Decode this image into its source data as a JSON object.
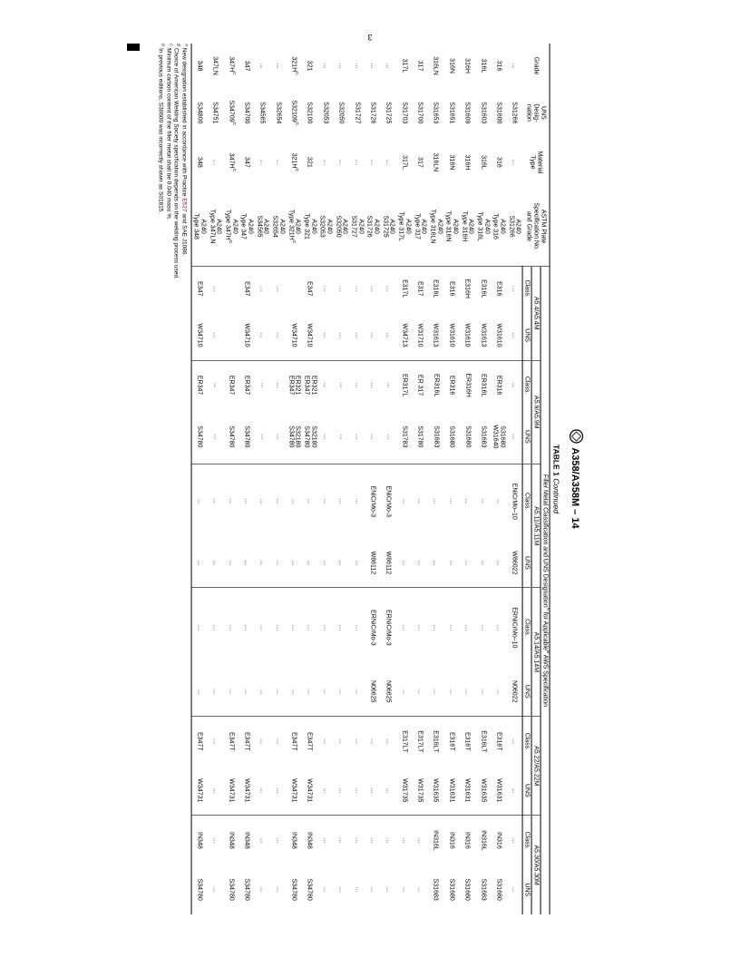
{
  "page_num_top": "3",
  "doc_designation": "A358/A358M – 14",
  "table_label": "TABLE 1",
  "table_caption": "Continued",
  "spanning_header": "Filler Metal Classification and UNS Designation<sup>A</sup> for Applicable<sup>B</sup> AWS Specification",
  "headers": {
    "grade": "Grade",
    "uns_desig": "UNS<br>Desig-<br>nation",
    "mat_type": "Material<br>Type",
    "astm_plate": "ASTM Plate<br>Specification No.<br>and Grade",
    "class": "Class.",
    "uns": "UNS",
    "specs": [
      "A5.4/A5.4M",
      "A5.9/A5.9M",
      "A5.11/A5.11M",
      "A5.14/A5.14M",
      "A5.22/A5.22M",
      "A5.30/A5.30M"
    ]
  },
  "rows": [
    {
      "grade": "…",
      "uns_d": "S31266",
      "mtype": "…",
      "plate": "A240<br>S31266",
      "c1": "…",
      "u1": "…",
      "c2": "…",
      "u2": "…",
      "c3": "ENiCrMo–10",
      "u3": "W86022",
      "c4": "ERNiCrMo–10",
      "u4": "N06022",
      "c5": "…",
      "u5": "…",
      "c6": "…",
      "u6": "…"
    },
    {
      "grade": "316",
      "uns_d": "S31600",
      "mtype": "316",
      "plate": "A240<br>Type 316",
      "c1": "E316",
      "u1": "W31610",
      "c2": "ER316",
      "u2": "S31680<br>W31640",
      "c3": "…",
      "u3": "…",
      "c4": "…",
      "u4": "…",
      "c5": "E316T",
      "u5": "W31631",
      "c6": "IN316",
      "u6": "S31680"
    },
    {
      "grade": "316L",
      "uns_d": "S31603",
      "mtype": "316L",
      "plate": "A240<br>Type 316L",
      "c1": "E316L",
      "u1": "W31613",
      "c2": "ER316L",
      "u2": "S31683",
      "c3": "…",
      "u3": "…",
      "c4": "…",
      "u4": "…",
      "c5": "E316LT",
      "u5": "W31635",
      "c6": "IN316L",
      "u6": "S31683"
    },
    {
      "grade": "316H",
      "uns_d": "S31609",
      "mtype": "316H",
      "plate": "A240<br>Type 316H",
      "c1": "E316H",
      "u1": "W31610",
      "c2": "ER316H",
      "u2": "S31680",
      "c3": "…",
      "u3": "…",
      "c4": "…",
      "u4": "…",
      "c5": "E316T",
      "u5": "W31631",
      "c6": "IN316",
      "u6": "S31680"
    },
    {
      "grade": "316N",
      "uns_d": "S31651",
      "mtype": "316N",
      "plate": "A240<br>Type 316N",
      "c1": "E316",
      "u1": "W31610",
      "c2": "ER316",
      "u2": "S31680",
      "c3": "…",
      "u3": "…",
      "c4": "…",
      "u4": "…",
      "c5": "E316T",
      "u5": "W31631",
      "c6": "IN316",
      "u6": "S31680"
    },
    {
      "grade": "316LN",
      "uns_d": "S31653",
      "mtype": "316LN",
      "plate": "A240<br>Type 316LN",
      "c1": "E316L",
      "u1": "W31613",
      "c2": "ER316L",
      "u2": "S31683",
      "c3": "…",
      "u3": "…",
      "c4": "…",
      "u4": "…",
      "c5": "E316LT",
      "u5": "W31635",
      "c6": "IN316L",
      "u6": "S31683"
    },
    {
      "grade": "317",
      "uns_d": "S31700",
      "mtype": "317",
      "plate": "A240<br>Type 317",
      "c1": "E317",
      "u1": "W31710",
      "c2": "ER 317",
      "u2": "S31780",
      "c3": "…",
      "u3": "…",
      "c4": "…",
      "u4": "…",
      "c5": "E317LT",
      "u5": "W31735",
      "c6": "…",
      "u6": "…"
    },
    {
      "grade": "317L",
      "uns_d": "S31703",
      "mtype": "317L",
      "plate": "A240<br>Type 317L",
      "c1": "E317L",
      "u1": "W34713",
      "c2": "ER317L",
      "u2": "S31783",
      "c3": "…",
      "u3": "…",
      "c4": "…",
      "u4": "…",
      "c5": "E317LT",
      "u5": "W31735",
      "c6": "…",
      "u6": "…"
    },
    {
      "grade": "…",
      "uns_d": "S31725",
      "mtype": "…",
      "plate": "A240<br>S31725",
      "c1": "…",
      "u1": "…",
      "c2": "…",
      "u2": "…",
      "c3": "ENiCrMo-3",
      "u3": "W86112",
      "c4": "ERNiCrMo-3",
      "u4": "N06625",
      "c5": "…",
      "u5": "…",
      "c6": "…",
      "u6": "…"
    },
    {
      "grade": "…",
      "uns_d": "S31726",
      "mtype": "…",
      "plate": "A240<br>S31726",
      "c1": "…",
      "u1": "…",
      "c2": "…",
      "u2": "…",
      "c3": "ENiCrMo-3",
      "u3": "W86112",
      "c4": "ERNiCrMo-3",
      "u4": "N06625",
      "c5": "…",
      "u5": "…",
      "c6": "…",
      "u6": "…"
    },
    {
      "grade": "…",
      "uns_d": "S31727",
      "mtype": "…",
      "plate": "A240<br>S31727",
      "c1": "…",
      "u1": "…",
      "c2": "…",
      "u2": "…",
      "c3": "…",
      "u3": "…",
      "c4": "…",
      "u4": "…",
      "c5": "…",
      "u5": "…",
      "c6": "…",
      "u6": "…"
    },
    {
      "grade": "…",
      "uns_d": "S32050",
      "mtype": "…",
      "plate": "A240<br>S32050",
      "c1": "…",
      "u1": "…",
      "c2": "…",
      "u2": "…",
      "c3": "…",
      "u3": "…",
      "c4": "…",
      "u4": "…",
      "c5": "…",
      "u5": "…",
      "c6": "…",
      "u6": "…"
    },
    {
      "grade": "…",
      "uns_d": "S32053",
      "mtype": "…",
      "plate": "A240<br>S32053",
      "c1": "…",
      "u1": "…",
      "c2": "…",
      "u2": "…",
      "c3": "…",
      "u3": "…",
      "c4": "…",
      "u4": "…",
      "c5": "…",
      "u5": "…",
      "c6": "…",
      "u6": "…"
    },
    {
      "grade": "321",
      "uns_d": "S32100",
      "mtype": "321",
      "plate": "A240<br>Type 321",
      "c1": "E347",
      "u1": "W34710",
      "c2": "ER321<br>ER347",
      "u2": "S32180<br>S34780",
      "c3": "…",
      "u3": "…",
      "c4": "…",
      "u4": "…",
      "c5": "E347T",
      "u5": "W34731",
      "c6": "IN348",
      "u6": "S34780"
    },
    {
      "grade": "321H<sup>C</sup>",
      "uns_d": "S32109<sup>C</sup>",
      "mtype": "321H<sup>C</sup>",
      "plate": "A240<br>Type 321H<sup>C</sup>",
      "c1": "",
      "u1": "W34710",
      "c2": "ER321<br>ER347",
      "u2": "S32180<br>S34780",
      "c3": "…",
      "u3": "…",
      "c4": "…",
      "u4": "…",
      "c5": "E347T",
      "u5": "W34731",
      "c6": "IN348",
      "u6": "S34780"
    },
    {
      "grade": "…",
      "uns_d": "S32654",
      "mtype": "…",
      "plate": "A240<br>S32654",
      "c1": "…",
      "u1": "…",
      "c2": "…",
      "u2": "…",
      "c3": "…",
      "u3": "…",
      "c4": "…",
      "u4": "…",
      "c5": "…",
      "u5": "…",
      "c6": "…",
      "u6": "…"
    },
    {
      "grade": "…",
      "uns_d": "S34565",
      "mtype": "…",
      "plate": "A240<br>S34565",
      "c1": "…",
      "u1": "…",
      "c2": "…",
      "u2": "…",
      "c3": "…",
      "u3": "…",
      "c4": "…",
      "u4": "…",
      "c5": "…",
      "u5": "…",
      "c6": "…",
      "u6": "…"
    },
    {
      "grade": "347",
      "uns_d": "S34700",
      "mtype": "347",
      "plate": "A240<br>Type 347",
      "c1": "E347",
      "u1": "W34710",
      "c2": "ER347",
      "u2": "S34780",
      "c3": "…",
      "u3": "…",
      "c4": "…",
      "u4": "…",
      "c5": "E347T",
      "u5": "W34731",
      "c6": "IN348",
      "u6": "S34780"
    },
    {
      "grade": "347H<sup>C</sup>",
      "uns_d": "S34709<sup>C</sup>",
      "mtype": "347H<sup>C</sup>",
      "plate": "A240<br>Type 347H<sup>C</sup>",
      "c1": "",
      "u1": "",
      "c2": "ER347",
      "u2": "S34780",
      "c3": "…",
      "u3": "…",
      "c4": "…",
      "u4": "…",
      "c5": "E347T",
      "u5": "W34731",
      "c6": "IN348",
      "u6": "S34780"
    },
    {
      "grade": "347LN",
      "uns_d": "S34751",
      "mtype": "…",
      "plate": "A240<br>Type 347LN",
      "c1": "…",
      "u1": "…",
      "c2": "…",
      "u2": "…",
      "c3": "…",
      "u3": "…",
      "c4": "…",
      "u4": "…",
      "c5": "…",
      "u5": "…",
      "c6": "…",
      "u6": "…"
    },
    {
      "grade": "348",
      "uns_d": "S34800",
      "mtype": "348",
      "plate": "A240<br>Type 348",
      "c1": "E347",
      "u1": "W34710",
      "c2": "ER347",
      "u2": "S34780",
      "c3": "…",
      "u3": "…",
      "c4": "…",
      "u4": "…",
      "c5": "E347T",
      "u5": "W34731",
      "c6": "IN348",
      "u6": "S34780"
    }
  ],
  "footnotes": [
    "<sup>A</sup> New designation established in accordance with Practice <span class=\"red\">E527</span> and SAE J1086.",
    "<sup>B</sup> Choice of American Welding Society specification depends on the welding process used.",
    "<sup>C</sup> Minimum carbon content of the filler metal shall be 0.040 mass %.",
    "<sup>D</sup> In previous editions, S30600 was incorrectly shown as S01815."
  ],
  "col_widths": {
    "grade": "4.5%",
    "uns_d": "5%",
    "mtype": "5%",
    "plate": "8%",
    "a54_c": "4.5%",
    "a54_u": "5%",
    "a59_c": "5%",
    "a59_u": "5.5%",
    "a511_c": "7.5%",
    "a511_u": "5%",
    "a514_c": "8%",
    "a514_u": "5%",
    "a522_c": "5%",
    "a522_u": "5%",
    "a530_c": "5%",
    "a530_u": "5%"
  }
}
